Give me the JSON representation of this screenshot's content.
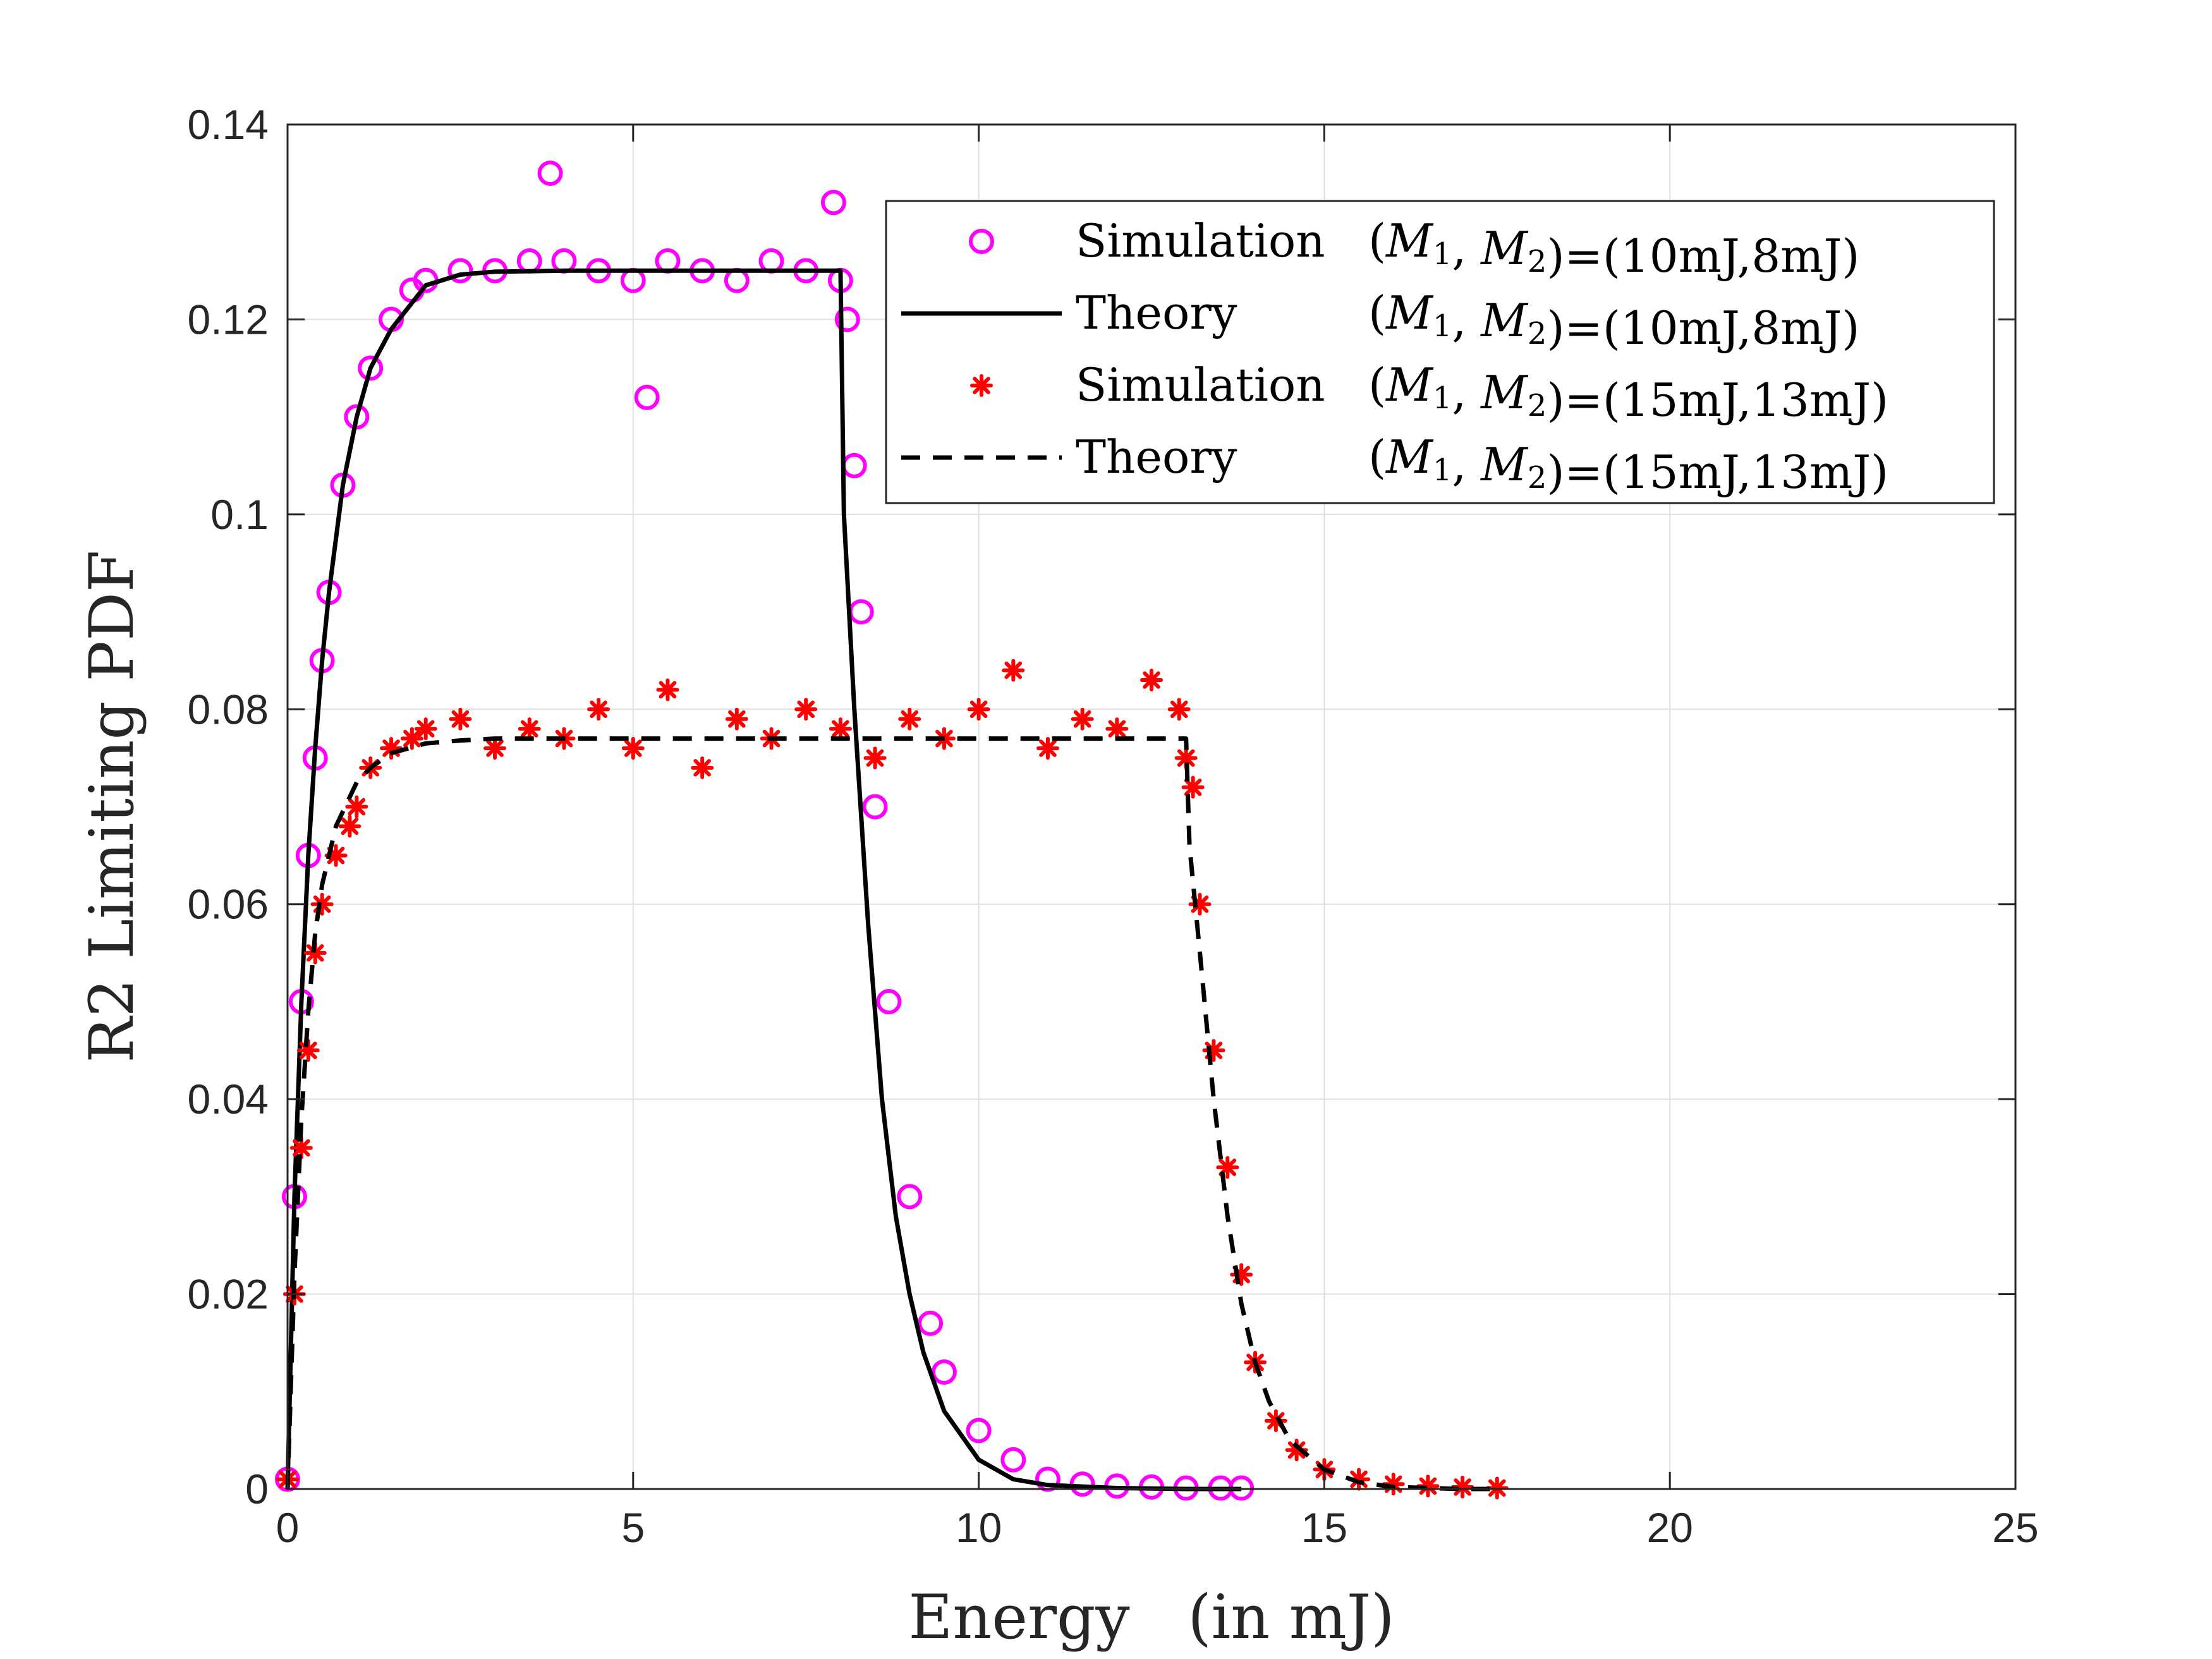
{
  "chart_data": {
    "type": "scatter",
    "xlabel": "Energy   (in mJ)",
    "ylabel": "R2 Limiting PDF",
    "xlim": [
      0,
      25
    ],
    "ylim": [
      0,
      0.14
    ],
    "xticks": [
      "0",
      "5",
      "10",
      "15",
      "20",
      "25"
    ],
    "yticks": [
      "0",
      "0.02",
      "0.04",
      "0.06",
      "0.08",
      "0.1",
      "0.12",
      "0.14"
    ],
    "grid": true,
    "legend_position": "top-right",
    "series": [
      {
        "name": "Simulation (M1, M2)=(10mJ,8mJ)",
        "legend_method": "Simulation",
        "legend_params": "=(10mJ,8mJ)",
        "kind": "scatter",
        "marker": "circle",
        "color": "#ff00ff",
        "x": [
          0.0,
          0.1,
          0.2,
          0.3,
          0.4,
          0.5,
          0.6,
          0.8,
          1.0,
          1.2,
          1.5,
          1.8,
          2.0,
          2.5,
          3.0,
          3.5,
          3.8,
          4.0,
          4.5,
          5.0,
          5.2,
          5.5,
          6.0,
          6.5,
          7.0,
          7.5,
          7.9,
          8.0,
          8.1,
          8.2,
          8.3,
          8.5,
          8.7,
          9.0,
          9.3,
          9.5,
          10.0,
          10.5,
          11.0,
          11.5,
          12.0,
          12.5,
          13.0,
          13.5,
          13.8
        ],
        "y": [
          0.001,
          0.03,
          0.05,
          0.065,
          0.075,
          0.085,
          0.092,
          0.103,
          0.11,
          0.115,
          0.12,
          0.123,
          0.124,
          0.125,
          0.125,
          0.126,
          0.135,
          0.126,
          0.125,
          0.124,
          0.112,
          0.126,
          0.125,
          0.124,
          0.126,
          0.125,
          0.132,
          0.124,
          0.12,
          0.105,
          0.09,
          0.07,
          0.05,
          0.03,
          0.017,
          0.012,
          0.006,
          0.003,
          0.001,
          0.0005,
          0.0003,
          0.0002,
          0.0001,
          0.0001,
          0.0001
        ]
      },
      {
        "name": "Theory (M1, M2)=(10mJ,8mJ)",
        "legend_method": "Theory",
        "legend_params": "=(10mJ,8mJ)",
        "kind": "line",
        "dash": "solid",
        "color": "#000000",
        "x": [
          0.0,
          0.1,
          0.2,
          0.3,
          0.4,
          0.5,
          0.6,
          0.8,
          1.0,
          1.2,
          1.5,
          2.0,
          2.5,
          3.0,
          4.0,
          5.0,
          6.0,
          7.0,
          8.0,
          8.05,
          8.2,
          8.4,
          8.6,
          8.8,
          9.0,
          9.2,
          9.5,
          10.0,
          10.5,
          11.0,
          12.0,
          13.0,
          13.8
        ],
        "y": [
          0.0,
          0.03,
          0.05,
          0.065,
          0.076,
          0.085,
          0.092,
          0.103,
          0.11,
          0.115,
          0.119,
          0.1235,
          0.1246,
          0.1249,
          0.125,
          0.125,
          0.125,
          0.125,
          0.125,
          0.1,
          0.08,
          0.058,
          0.04,
          0.028,
          0.02,
          0.014,
          0.008,
          0.003,
          0.001,
          0.0004,
          0.0001,
          0.0,
          0.0
        ]
      },
      {
        "name": "Simulation (M1, M2)=(15mJ,13mJ)",
        "legend_method": "Simulation",
        "legend_params": "=(15mJ,13mJ)",
        "kind": "scatter",
        "marker": "asterisk",
        "color": "#ff0000",
        "x": [
          0.0,
          0.1,
          0.2,
          0.3,
          0.4,
          0.5,
          0.7,
          0.9,
          1.0,
          1.2,
          1.5,
          1.8,
          2.0,
          2.5,
          3.0,
          3.5,
          4.0,
          4.5,
          5.0,
          5.5,
          6.0,
          6.5,
          7.0,
          7.5,
          8.0,
          8.5,
          9.0,
          9.5,
          10.0,
          10.5,
          11.0,
          11.5,
          12.0,
          12.5,
          12.9,
          13.0,
          13.1,
          13.2,
          13.4,
          13.6,
          13.8,
          14.0,
          14.3,
          14.6,
          15.0,
          15.5,
          16.0,
          16.5,
          17.0,
          17.5
        ],
        "y": [
          0.001,
          0.02,
          0.035,
          0.045,
          0.055,
          0.06,
          0.065,
          0.068,
          0.07,
          0.074,
          0.076,
          0.077,
          0.078,
          0.079,
          0.076,
          0.078,
          0.077,
          0.08,
          0.076,
          0.082,
          0.074,
          0.079,
          0.077,
          0.08,
          0.078,
          0.075,
          0.079,
          0.077,
          0.08,
          0.084,
          0.076,
          0.079,
          0.078,
          0.083,
          0.08,
          0.075,
          0.072,
          0.06,
          0.045,
          0.033,
          0.022,
          0.013,
          0.007,
          0.004,
          0.002,
          0.001,
          0.0005,
          0.0003,
          0.0002,
          0.0001
        ]
      },
      {
        "name": "Theory (M1, M2)=(15mJ,13mJ)",
        "legend_method": "Theory",
        "legend_params": "=(15mJ,13mJ)",
        "kind": "line",
        "dash": "dashed",
        "color": "#000000",
        "x": [
          0.0,
          0.1,
          0.2,
          0.3,
          0.4,
          0.5,
          0.7,
          0.9,
          1.0,
          1.2,
          1.5,
          2.0,
          2.5,
          3.0,
          5.0,
          8.0,
          10.0,
          13.0,
          13.05,
          13.2,
          13.4,
          13.6,
          13.8,
          14.0,
          14.2,
          14.5,
          15.0,
          15.5,
          16.0,
          17.0,
          17.5
        ],
        "y": [
          0.0,
          0.022,
          0.038,
          0.049,
          0.057,
          0.062,
          0.068,
          0.071,
          0.0725,
          0.074,
          0.0755,
          0.0765,
          0.0768,
          0.077,
          0.077,
          0.077,
          0.077,
          0.077,
          0.066,
          0.055,
          0.04,
          0.028,
          0.019,
          0.013,
          0.009,
          0.005,
          0.002,
          0.0007,
          0.0002,
          0.0,
          0.0
        ]
      }
    ]
  }
}
